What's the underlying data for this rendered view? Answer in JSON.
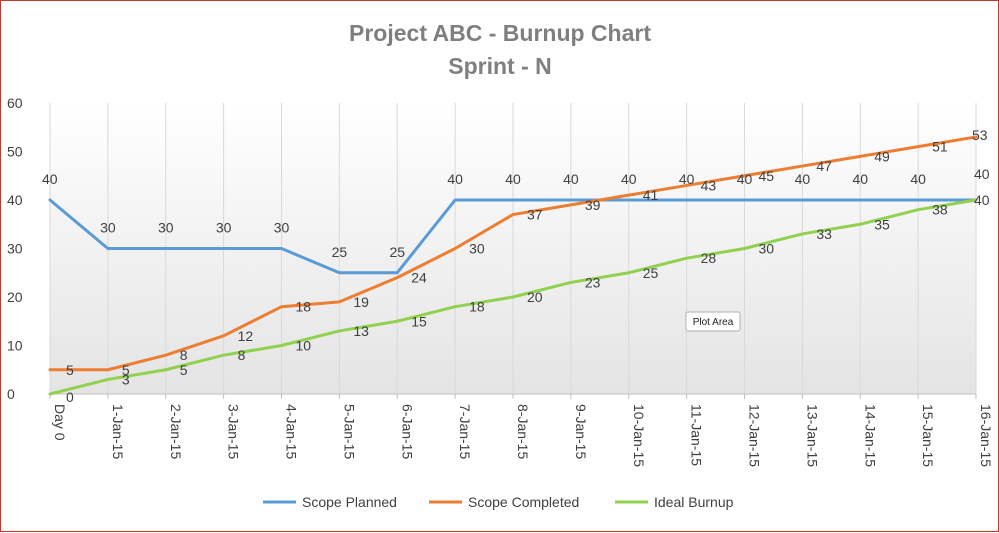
{
  "chart_data": {
    "type": "line",
    "title": "Project ABC - Burnup Chart",
    "subtitle": "Sprint - N",
    "xlabel": "",
    "ylabel": "",
    "ylim": [
      0,
      60
    ],
    "yticks": [
      "0",
      "10",
      "20",
      "30",
      "40",
      "50",
      "60"
    ],
    "categories": [
      "Day 0",
      "1-Jan-15",
      "2-Jan-15",
      "3-Jan-15",
      "4-Jan-15",
      "5-Jan-15",
      "6-Jan-15",
      "7-Jan-15",
      "8-Jan-15",
      "9-Jan-15",
      "10-Jan-15",
      "11-Jan-15",
      "12-Jan-15",
      "13-Jan-15",
      "14-Jan-15",
      "15-Jan-15",
      "16-Jan-15"
    ],
    "series": [
      {
        "name": "Scope Planned",
        "color": "#5b9bd5",
        "values": [
          40,
          30,
          30,
          30,
          30,
          25,
          25,
          40,
          40,
          40,
          40,
          40,
          40,
          40,
          40,
          40,
          40
        ]
      },
      {
        "name": "Scope Completed",
        "color": "#ed7d31",
        "values": [
          5,
          5,
          8,
          12,
          18,
          19,
          24,
          30,
          37,
          39,
          41,
          43,
          45,
          47,
          49,
          51,
          53
        ]
      },
      {
        "name": "Ideal Burnup",
        "color": "#92d050",
        "values": [
          0,
          3,
          5,
          8,
          10,
          13,
          15,
          18,
          20,
          23,
          25,
          28,
          30,
          33,
          35,
          38,
          40
        ]
      }
    ],
    "legend_position": "bottom",
    "grid": "vertical",
    "tooltip": "Plot Area"
  }
}
